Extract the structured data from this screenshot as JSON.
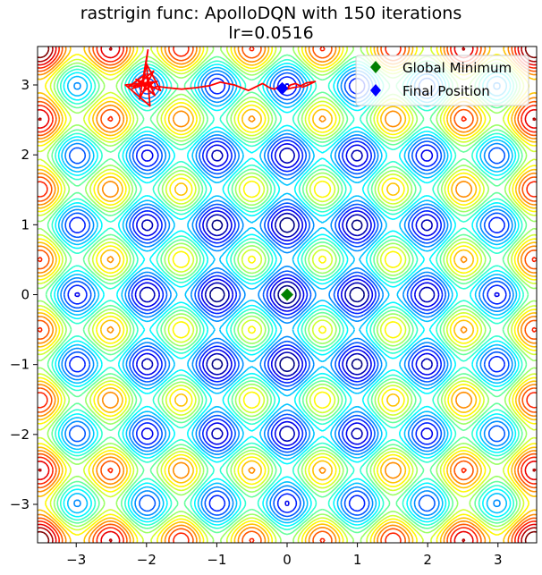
{
  "chart_data": {
    "type": "contour",
    "title": "rastrigin func: ApolloDQN with 150 iterations",
    "subtitle": "lr=0.0516",
    "xlabel": "",
    "ylabel": "",
    "xlim": [
      -3.55,
      3.55
    ],
    "ylim": [
      -3.55,
      3.55
    ],
    "xticks": [
      -3,
      -2,
      -1,
      0,
      1,
      2,
      3
    ],
    "yticks": [
      -3,
      -2,
      -1,
      0,
      1,
      2,
      3
    ],
    "xtick_labels": [
      "−3",
      "−2",
      "−1",
      "0",
      "1",
      "2",
      "3"
    ],
    "ytick_labels": [
      "−3",
      "−2",
      "−1",
      "0",
      "1",
      "2",
      "3"
    ],
    "grid": false,
    "colormap": "jet",
    "contour_count": 20,
    "legend_position": "top-right",
    "series": [
      {
        "name": "Global Minimum",
        "type": "scatter",
        "marker": "diamond",
        "color": "#008000",
        "x": [
          0
        ],
        "y": [
          0
        ]
      },
      {
        "name": "Final Position",
        "type": "scatter",
        "marker": "diamond",
        "color": "#0000ff",
        "x": [
          -0.07
        ],
        "y": [
          2.95
        ]
      }
    ],
    "trajectory": {
      "color": "#ff0000",
      "x": [
        -2.05,
        -1.98,
        -2.1,
        -1.9,
        -2.2,
        -1.85,
        -2.3,
        -1.95,
        -2.0,
        -1.8,
        -2.15,
        -1.88,
        -2.02,
        -2.25,
        -1.92,
        -2.05,
        -1.97,
        -2.03,
        -1.99,
        -2.01,
        -1.95,
        -2.06,
        -1.93,
        -2.0,
        -1.9,
        -1.85,
        -1.7,
        -1.5,
        -1.3,
        -1.1,
        -0.95,
        -0.75,
        -0.55,
        -0.45,
        -0.35,
        -0.25,
        -0.18,
        -0.12,
        -0.05,
        0.0,
        0.05,
        0.12,
        0.22,
        0.3,
        0.4,
        0.28,
        0.18,
        0.08,
        0.0,
        -0.04,
        -0.07
      ],
      "y": [
        3.0,
        3.5,
        2.8,
        3.2,
        2.95,
        3.05,
        3.0,
        2.7,
        3.3,
        2.92,
        3.08,
        2.85,
        3.15,
        2.98,
        3.02,
        2.9,
        3.1,
        2.95,
        3.05,
        3.0,
        2.97,
        3.03,
        2.99,
        3.01,
        2.95,
        2.98,
        2.96,
        2.94,
        2.96,
        2.99,
        3.04,
        3.0,
        2.92,
        2.97,
        3.02,
        2.96,
        2.94,
        2.98,
        2.91,
        2.95,
        3.0,
        3.02,
        2.97,
        3.0,
        3.05,
        3.03,
        2.98,
        2.96,
        2.94,
        2.95,
        2.95
      ]
    }
  }
}
